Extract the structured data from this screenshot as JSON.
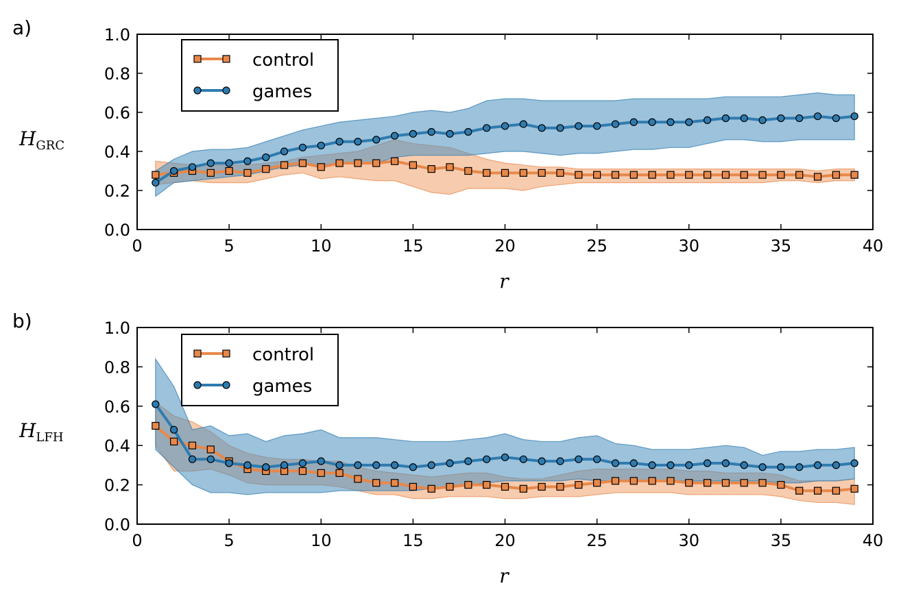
{
  "colors": {
    "control": "#e8884a",
    "control_band": "#f0a06a",
    "games": "#2e7bb0",
    "games_band": "#4a8fbf"
  },
  "chart_data": [
    {
      "panel_label": "a)",
      "type": "line",
      "ylabel_main": "H",
      "ylabel_sub": "GRC",
      "xlabel": "r",
      "xlim": [
        0,
        40
      ],
      "ylim": [
        0,
        1
      ],
      "xticks": [
        "0",
        "5",
        "10",
        "15",
        "20",
        "25",
        "30",
        "35",
        "40"
      ],
      "yticks": [
        "0.0",
        "0.2",
        "0.4",
        "0.6",
        "0.8",
        "1.0"
      ],
      "legend_position": "top-left",
      "x": [
        1,
        2,
        3,
        4,
        5,
        6,
        7,
        8,
        9,
        10,
        11,
        12,
        13,
        14,
        15,
        16,
        17,
        18,
        19,
        20,
        21,
        22,
        23,
        24,
        25,
        26,
        27,
        28,
        29,
        30,
        31,
        32,
        33,
        34,
        35,
        36,
        37,
        38,
        39
      ],
      "series": [
        {
          "name": "control",
          "marker": "square",
          "values": [
            0.28,
            0.29,
            0.3,
            0.29,
            0.3,
            0.29,
            0.31,
            0.33,
            0.34,
            0.32,
            0.34,
            0.34,
            0.34,
            0.35,
            0.33,
            0.31,
            0.32,
            0.3,
            0.29,
            0.29,
            0.29,
            0.29,
            0.29,
            0.28,
            0.28,
            0.28,
            0.28,
            0.28,
            0.28,
            0.28,
            0.28,
            0.28,
            0.28,
            0.28,
            0.28,
            0.28,
            0.27,
            0.28,
            0.28
          ],
          "upper": [
            0.35,
            0.34,
            0.33,
            0.33,
            0.33,
            0.33,
            0.34,
            0.35,
            0.37,
            0.38,
            0.39,
            0.4,
            0.43,
            0.46,
            0.44,
            0.43,
            0.42,
            0.39,
            0.36,
            0.34,
            0.33,
            0.32,
            0.32,
            0.31,
            0.31,
            0.31,
            0.31,
            0.31,
            0.31,
            0.31,
            0.31,
            0.31,
            0.31,
            0.31,
            0.31,
            0.31,
            0.3,
            0.31,
            0.31
          ],
          "lower": [
            0.23,
            0.24,
            0.25,
            0.24,
            0.24,
            0.24,
            0.26,
            0.28,
            0.29,
            0.26,
            0.27,
            0.26,
            0.25,
            0.25,
            0.22,
            0.19,
            0.18,
            0.21,
            0.21,
            0.21,
            0.2,
            0.22,
            0.23,
            0.24,
            0.24,
            0.24,
            0.24,
            0.24,
            0.24,
            0.24,
            0.24,
            0.24,
            0.24,
            0.24,
            0.25,
            0.25,
            0.24,
            0.25,
            0.25
          ]
        },
        {
          "name": "games",
          "marker": "circle",
          "values": [
            0.24,
            0.3,
            0.32,
            0.34,
            0.34,
            0.35,
            0.37,
            0.4,
            0.42,
            0.43,
            0.45,
            0.45,
            0.46,
            0.48,
            0.49,
            0.5,
            0.49,
            0.5,
            0.52,
            0.53,
            0.54,
            0.52,
            0.52,
            0.53,
            0.53,
            0.54,
            0.55,
            0.55,
            0.55,
            0.55,
            0.56,
            0.57,
            0.57,
            0.56,
            0.57,
            0.57,
            0.58,
            0.57,
            0.58
          ],
          "upper": [
            0.3,
            0.36,
            0.4,
            0.41,
            0.41,
            0.42,
            0.45,
            0.48,
            0.51,
            0.53,
            0.55,
            0.56,
            0.57,
            0.58,
            0.6,
            0.61,
            0.6,
            0.62,
            0.66,
            0.67,
            0.67,
            0.66,
            0.66,
            0.66,
            0.66,
            0.66,
            0.67,
            0.67,
            0.67,
            0.67,
            0.67,
            0.68,
            0.68,
            0.68,
            0.68,
            0.69,
            0.7,
            0.69,
            0.69
          ],
          "lower": [
            0.17,
            0.24,
            0.25,
            0.26,
            0.27,
            0.28,
            0.3,
            0.32,
            0.33,
            0.33,
            0.34,
            0.34,
            0.34,
            0.37,
            0.38,
            0.38,
            0.38,
            0.38,
            0.39,
            0.4,
            0.4,
            0.39,
            0.38,
            0.39,
            0.39,
            0.4,
            0.41,
            0.41,
            0.42,
            0.42,
            0.44,
            0.46,
            0.46,
            0.45,
            0.45,
            0.46,
            0.46,
            0.46,
            0.46
          ]
        }
      ]
    },
    {
      "panel_label": "b)",
      "type": "line",
      "ylabel_main": "H",
      "ylabel_sub": "LFH",
      "xlabel": "r",
      "xlim": [
        0,
        40
      ],
      "ylim": [
        0,
        1
      ],
      "xticks": [
        "0",
        "5",
        "10",
        "15",
        "20",
        "25",
        "30",
        "35",
        "40"
      ],
      "yticks": [
        "0.0",
        "0.2",
        "0.4",
        "0.6",
        "0.8",
        "1.0"
      ],
      "legend_position": "top-left",
      "x": [
        1,
        2,
        3,
        4,
        5,
        6,
        7,
        8,
        9,
        10,
        11,
        12,
        13,
        14,
        15,
        16,
        17,
        18,
        19,
        20,
        21,
        22,
        23,
        24,
        25,
        26,
        27,
        28,
        29,
        30,
        31,
        32,
        33,
        34,
        35,
        36,
        37,
        38,
        39
      ],
      "series": [
        {
          "name": "control",
          "marker": "square",
          "values": [
            0.5,
            0.42,
            0.4,
            0.38,
            0.32,
            0.28,
            0.27,
            0.27,
            0.27,
            0.26,
            0.26,
            0.23,
            0.21,
            0.21,
            0.19,
            0.18,
            0.19,
            0.2,
            0.2,
            0.19,
            0.18,
            0.19,
            0.19,
            0.2,
            0.21,
            0.22,
            0.22,
            0.22,
            0.22,
            0.21,
            0.21,
            0.21,
            0.21,
            0.21,
            0.2,
            0.17,
            0.17,
            0.17,
            0.18
          ],
          "upper": [
            0.62,
            0.55,
            0.52,
            0.47,
            0.4,
            0.36,
            0.34,
            0.33,
            0.33,
            0.32,
            0.32,
            0.29,
            0.27,
            0.26,
            0.25,
            0.24,
            0.25,
            0.26,
            0.26,
            0.24,
            0.23,
            0.23,
            0.25,
            0.27,
            0.28,
            0.28,
            0.28,
            0.28,
            0.28,
            0.27,
            0.27,
            0.26,
            0.26,
            0.26,
            0.25,
            0.22,
            0.22,
            0.22,
            0.23
          ],
          "lower": [
            0.4,
            0.27,
            0.27,
            0.28,
            0.25,
            0.21,
            0.2,
            0.2,
            0.2,
            0.2,
            0.19,
            0.17,
            0.15,
            0.15,
            0.13,
            0.13,
            0.14,
            0.14,
            0.14,
            0.13,
            0.13,
            0.14,
            0.14,
            0.14,
            0.15,
            0.16,
            0.16,
            0.16,
            0.16,
            0.15,
            0.15,
            0.15,
            0.15,
            0.15,
            0.14,
            0.12,
            0.11,
            0.11,
            0.1
          ]
        },
        {
          "name": "games",
          "marker": "circle",
          "values": [
            0.61,
            0.48,
            0.33,
            0.33,
            0.31,
            0.3,
            0.29,
            0.3,
            0.31,
            0.32,
            0.3,
            0.3,
            0.3,
            0.3,
            0.29,
            0.3,
            0.31,
            0.32,
            0.33,
            0.34,
            0.33,
            0.32,
            0.32,
            0.33,
            0.33,
            0.31,
            0.31,
            0.3,
            0.3,
            0.3,
            0.31,
            0.31,
            0.3,
            0.29,
            0.29,
            0.29,
            0.3,
            0.3,
            0.31
          ],
          "upper": [
            0.84,
            0.7,
            0.48,
            0.5,
            0.45,
            0.46,
            0.42,
            0.45,
            0.46,
            0.48,
            0.44,
            0.44,
            0.44,
            0.43,
            0.42,
            0.42,
            0.42,
            0.43,
            0.44,
            0.46,
            0.43,
            0.42,
            0.42,
            0.44,
            0.45,
            0.41,
            0.4,
            0.38,
            0.38,
            0.38,
            0.39,
            0.4,
            0.39,
            0.35,
            0.37,
            0.37,
            0.38,
            0.38,
            0.39
          ],
          "lower": [
            0.38,
            0.29,
            0.2,
            0.16,
            0.16,
            0.15,
            0.16,
            0.16,
            0.16,
            0.16,
            0.17,
            0.17,
            0.17,
            0.17,
            0.17,
            0.18,
            0.19,
            0.2,
            0.21,
            0.22,
            0.22,
            0.22,
            0.22,
            0.23,
            0.22,
            0.22,
            0.22,
            0.22,
            0.22,
            0.22,
            0.22,
            0.22,
            0.22,
            0.22,
            0.21,
            0.21,
            0.22,
            0.22,
            0.23
          ]
        }
      ]
    }
  ]
}
